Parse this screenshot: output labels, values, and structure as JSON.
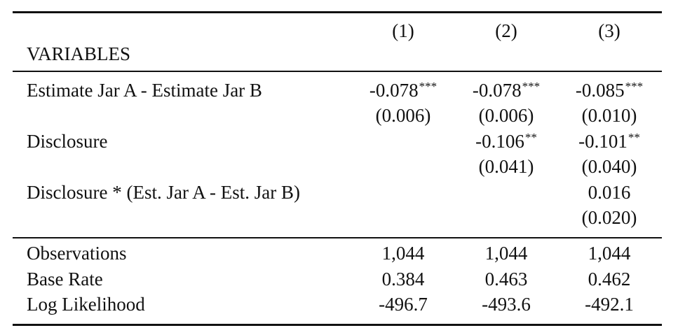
{
  "table": {
    "header": {
      "variables_label": "VARIABLES",
      "columns": [
        "(1)",
        "(2)",
        "(3)"
      ]
    },
    "rows": [
      {
        "label": "Estimate Jar A - Estimate Jar B",
        "coef": [
          "-0.078",
          "-0.078",
          "-0.085"
        ],
        "stars": [
          "***",
          "***",
          "***"
        ],
        "se": [
          "(0.006)",
          "(0.006)",
          "(0.010)"
        ]
      },
      {
        "label": "Disclosure",
        "coef": [
          "",
          "-0.106",
          "-0.101"
        ],
        "stars": [
          "",
          "**",
          "**"
        ],
        "se": [
          "",
          "(0.041)",
          "(0.040)"
        ]
      },
      {
        "label": "Disclosure * (Est. Jar A - Est. Jar B)",
        "coef": [
          "",
          "",
          "0.016"
        ],
        "stars": [
          "",
          "",
          ""
        ],
        "se": [
          "",
          "",
          "(0.020)"
        ]
      }
    ],
    "stats": [
      {
        "label": "Observations",
        "values": [
          "1,044",
          "1,044",
          "1,044"
        ]
      },
      {
        "label": "Base Rate",
        "values": [
          "0.384",
          "0.463",
          "0.462"
        ]
      },
      {
        "label": "Log Likelihood",
        "values": [
          "-496.7",
          "-493.6",
          "-492.1"
        ]
      }
    ]
  }
}
